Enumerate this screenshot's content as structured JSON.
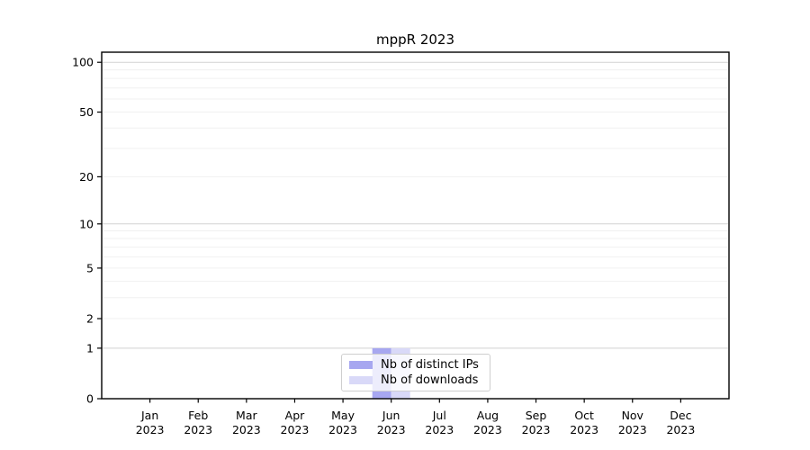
{
  "figure": {
    "background": "#ffffff"
  },
  "chart_data": {
    "type": "bar",
    "title": "mppR 2023",
    "categories": [
      "Jan 2023",
      "Feb 2023",
      "Mar 2023",
      "Apr 2023",
      "May 2023",
      "Jun 2023",
      "Jul 2023",
      "Aug 2023",
      "Sep 2023",
      "Oct 2023",
      "Nov 2023",
      "Dec 2023"
    ],
    "series": [
      {
        "name": "Nb of distinct IPs",
        "color": "#a7a7f0",
        "values": [
          0,
          0,
          0,
          0,
          0,
          1,
          0,
          0,
          0,
          0,
          0,
          0
        ]
      },
      {
        "name": "Nb of downloads",
        "color": "#d9d9f8",
        "values": [
          0,
          0,
          0,
          0,
          0,
          1,
          0,
          0,
          0,
          0,
          0,
          0
        ]
      }
    ],
    "xlabel": "",
    "ylabel": "",
    "yscale": "log1p",
    "ylim": [
      0,
      115
    ],
    "y_ticks": [
      0,
      1,
      2,
      5,
      10,
      20,
      50,
      100
    ],
    "y_gridlines_major": [
      1,
      10,
      100
    ],
    "y_gridlines_minor": [
      2,
      3,
      4,
      5,
      6,
      7,
      8,
      9,
      20,
      30,
      40,
      50,
      60,
      70,
      80,
      90
    ],
    "grid": "horizontal",
    "legend_position": "lower-center"
  },
  "colors": {
    "spine": "#000000",
    "grid_major": "#d2d2d2",
    "grid_minor": "#f0f0f0",
    "text": "#000000",
    "legend_border": "#cfcfcf"
  }
}
